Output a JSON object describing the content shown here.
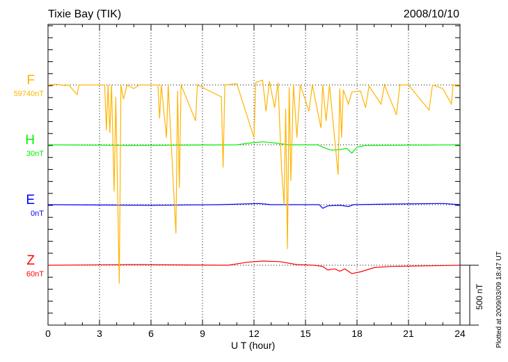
{
  "header": {
    "station": "Tixie Bay (TIK)",
    "date": "2008/10/10"
  },
  "footer": {
    "plotted": "Plotted at 2009/03/09 18:47 UT"
  },
  "chart_data": {
    "type": "line",
    "xlabel": "U T (hour)",
    "xlim": [
      0,
      24
    ],
    "xticks": [
      "0",
      "3",
      "6",
      "9",
      "12",
      "15",
      "18",
      "21",
      "24"
    ],
    "scale_bar": "500 nT",
    "grid": "dotted vertical every 3 h, dotted baseline per component",
    "series": [
      {
        "name": "F",
        "baseline": "59740nT",
        "color": "#ffb400",
        "points": [
          [
            0,
            0
          ],
          [
            0.5,
            5
          ],
          [
            1,
            -5
          ],
          [
            1.2,
            0
          ],
          [
            1.7,
            -80
          ],
          [
            1.8,
            0
          ],
          [
            2,
            0
          ],
          [
            3.3,
            0
          ],
          [
            3.4,
            -380
          ],
          [
            3.5,
            0
          ],
          [
            3.6,
            -400
          ],
          [
            3.7,
            0
          ],
          [
            3.85,
            -890
          ],
          [
            3.95,
            -100
          ],
          [
            4.15,
            -1660
          ],
          [
            4.25,
            0
          ],
          [
            4.4,
            -120
          ],
          [
            4.6,
            0
          ],
          [
            5,
            -30
          ],
          [
            5.3,
            0
          ],
          [
            6.4,
            0
          ],
          [
            6.5,
            -280
          ],
          [
            6.6,
            0
          ],
          [
            6.9,
            -440
          ],
          [
            7,
            0
          ],
          [
            7.45,
            -1240
          ],
          [
            7.55,
            -50
          ],
          [
            7.65,
            -860
          ],
          [
            7.75,
            0
          ],
          [
            8.6,
            -300
          ],
          [
            8.7,
            0
          ],
          [
            10.1,
            -100
          ],
          [
            10.2,
            -690
          ],
          [
            10.3,
            0
          ],
          [
            11,
            10
          ],
          [
            12,
            -440
          ],
          [
            12.1,
            20
          ],
          [
            12.5,
            40
          ],
          [
            12.7,
            -220
          ],
          [
            12.9,
            30
          ],
          [
            13.2,
            -190
          ],
          [
            13.4,
            20
          ],
          [
            13.6,
            -690
          ],
          [
            13.75,
            -1000
          ],
          [
            13.85,
            -200
          ],
          [
            13.95,
            -1370
          ],
          [
            14.05,
            -20
          ],
          [
            14.15,
            -800
          ],
          [
            14.3,
            0
          ],
          [
            14.5,
            -440
          ],
          [
            14.7,
            0
          ],
          [
            15.2,
            -220
          ],
          [
            15.4,
            0
          ],
          [
            15.9,
            -360
          ],
          [
            16,
            0
          ],
          [
            16.2,
            -300
          ],
          [
            16.4,
            0
          ],
          [
            16.9,
            -750
          ],
          [
            17,
            -30
          ],
          [
            17.1,
            -440
          ],
          [
            17.2,
            -40
          ],
          [
            17.5,
            -160
          ],
          [
            17.7,
            -60
          ],
          [
            18.2,
            -50
          ],
          [
            18.5,
            -190
          ],
          [
            18.7,
            -10
          ],
          [
            19.4,
            -160
          ],
          [
            19.6,
            0
          ],
          [
            20.3,
            -250
          ],
          [
            20.5,
            0
          ],
          [
            21,
            0
          ],
          [
            22.2,
            -210
          ],
          [
            22.4,
            0
          ],
          [
            23,
            -30
          ],
          [
            23.5,
            -160
          ],
          [
            23.6,
            0
          ],
          [
            24,
            0
          ]
        ]
      },
      {
        "name": "H",
        "baseline": "30nT",
        "color": "#00ee00",
        "points": [
          [
            0,
            0
          ],
          [
            5,
            -5
          ],
          [
            11,
            0
          ],
          [
            11.8,
            15
          ],
          [
            12.5,
            25
          ],
          [
            13.2,
            15
          ],
          [
            14,
            0
          ],
          [
            15.7,
            0
          ],
          [
            16.1,
            -25
          ],
          [
            16.5,
            -45
          ],
          [
            17,
            -40
          ],
          [
            17.4,
            -30
          ],
          [
            17.7,
            -70
          ],
          [
            18,
            -20
          ],
          [
            18.5,
            -5
          ],
          [
            24,
            0
          ]
        ]
      },
      {
        "name": "E",
        "baseline": "0nT",
        "color": "#0000ff",
        "points": [
          [
            0,
            0
          ],
          [
            6,
            -5
          ],
          [
            10,
            0
          ],
          [
            12.3,
            10
          ],
          [
            13,
            0
          ],
          [
            15.8,
            0
          ],
          [
            16,
            -30
          ],
          [
            16.3,
            -10
          ],
          [
            17,
            -5
          ],
          [
            17.5,
            -15
          ],
          [
            17.8,
            0
          ],
          [
            20,
            5
          ],
          [
            23,
            10
          ],
          [
            24,
            0
          ]
        ]
      },
      {
        "name": "Z",
        "baseline": "60nT",
        "color": "#ff0000",
        "points": [
          [
            0,
            0
          ],
          [
            5,
            5
          ],
          [
            10.5,
            0
          ],
          [
            11.6,
            25
          ],
          [
            12.5,
            35
          ],
          [
            13.5,
            30
          ],
          [
            14.5,
            5
          ],
          [
            15.5,
            0
          ],
          [
            16,
            -10
          ],
          [
            16.3,
            -40
          ],
          [
            16.7,
            -30
          ],
          [
            17,
            -50
          ],
          [
            17.3,
            -30
          ],
          [
            17.7,
            -70
          ],
          [
            18.2,
            -55
          ],
          [
            19,
            -20
          ],
          [
            20,
            -10
          ],
          [
            24,
            0
          ]
        ]
      }
    ]
  }
}
